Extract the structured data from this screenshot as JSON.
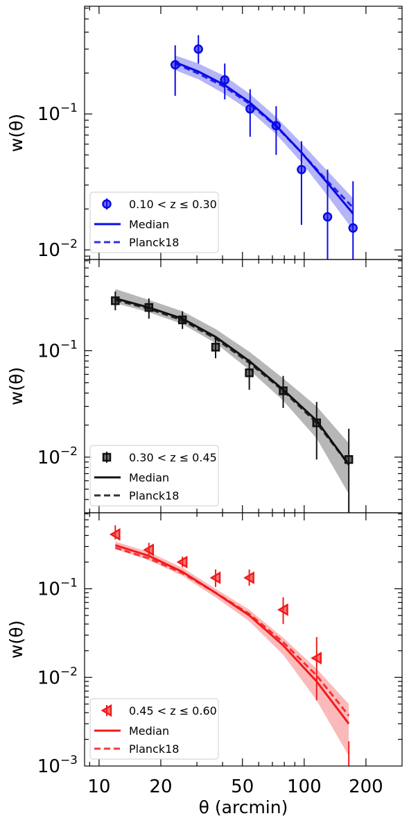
{
  "figure": {
    "xlabel": "θ  (arcmin)"
  },
  "chart_data": [
    {
      "type": "scatter",
      "panel": "top",
      "color": "#0a0ae6",
      "marker": "circle",
      "ylabel": "w(θ)",
      "x_scale": "log",
      "y_scale": "log",
      "xlim": [
        8.5,
        300
      ],
      "ylim": [
        0.0085,
        0.62
      ],
      "x_ticks": [
        10,
        20,
        50,
        100,
        200
      ],
      "x_tick_labels": [
        "10",
        "20",
        "50",
        "100",
        "200"
      ],
      "y_ticks": [
        0.01,
        0.1
      ],
      "y_tick_labels": [
        {
          "base": "10",
          "exp": "−2"
        },
        {
          "base": "10",
          "exp": "−1"
        }
      ],
      "legend": {
        "position": "lower-left",
        "data_label": "0.10 < z ≤ 0.30",
        "median_label": "Median",
        "planck_label": "Planck18"
      },
      "data": {
        "x": [
          23.5,
          30.5,
          41,
          54.5,
          73,
          97,
          130,
          173
        ],
        "y": [
          0.23,
          0.3,
          0.178,
          0.109,
          0.082,
          0.039,
          0.0175,
          0.0145
        ],
        "yerr_low": [
          0.136,
          0.235,
          0.128,
          0.068,
          0.05,
          0.0153,
          0.0075,
          0.0073
        ],
        "yerr_high": [
          0.32,
          0.38,
          0.235,
          0.152,
          0.114,
          0.063,
          0.039,
          0.032
        ]
      },
      "median": {
        "x": [
          23.5,
          30.5,
          41,
          54.5,
          73,
          97,
          130,
          173
        ],
        "y": [
          0.24,
          0.205,
          0.163,
          0.121,
          0.082,
          0.052,
          0.031,
          0.0185
        ]
      },
      "band": {
        "low": [
          0.21,
          0.18,
          0.14,
          0.105,
          0.071,
          0.044,
          0.025,
          0.014
        ],
        "high": [
          0.27,
          0.235,
          0.19,
          0.14,
          0.095,
          0.061,
          0.038,
          0.024
        ]
      },
      "planck": {
        "x": [
          23.5,
          30.5,
          41,
          54.5,
          73,
          97,
          130,
          173
        ],
        "y": [
          0.235,
          0.198,
          0.158,
          0.118,
          0.081,
          0.052,
          0.032,
          0.0205
        ]
      }
    },
    {
      "type": "scatter",
      "panel": "middle",
      "color": "#111111",
      "marker": "square",
      "ylabel": "w(θ)",
      "x_scale": "log",
      "y_scale": "log",
      "xlim": [
        8.5,
        300
      ],
      "ylim": [
        0.003,
        0.72
      ],
      "x_ticks": [
        10,
        20,
        50,
        100,
        200
      ],
      "x_tick_labels": [
        "10",
        "20",
        "50",
        "100",
        "200"
      ],
      "y_ticks": [
        0.01,
        0.1
      ],
      "y_tick_labels": [
        {
          "base": "10",
          "exp": "−2"
        },
        {
          "base": "10",
          "exp": "−1"
        }
      ],
      "legend": {
        "position": "lower-left",
        "data_label": "0.30 < z ≤ 0.45",
        "median_label": "Median",
        "planck_label": "Planck18"
      },
      "data": {
        "x": [
          12,
          17.5,
          25.5,
          37,
          54,
          79,
          115,
          165
        ],
        "y": [
          0.295,
          0.255,
          0.195,
          0.108,
          0.062,
          0.042,
          0.021,
          0.0095
        ],
        "yerr_low": [
          0.24,
          0.2,
          0.16,
          0.085,
          0.043,
          0.029,
          0.0095,
          0.0018
        ],
        "yerr_high": [
          0.36,
          0.31,
          0.235,
          0.135,
          0.083,
          0.058,
          0.033,
          0.0185
        ]
      },
      "median": {
        "x": [
          12,
          17.5,
          25.5,
          37,
          54,
          79,
          115,
          165
        ],
        "y": [
          0.31,
          0.255,
          0.2,
          0.135,
          0.08,
          0.043,
          0.022,
          0.0085
        ]
      },
      "band": {
        "low": [
          0.28,
          0.23,
          0.178,
          0.118,
          0.066,
          0.034,
          0.015,
          0.0045
        ],
        "high": [
          0.38,
          0.3,
          0.235,
          0.16,
          0.098,
          0.055,
          0.03,
          0.0135
        ]
      },
      "planck": {
        "x": [
          12,
          17.5,
          25.5,
          37,
          54,
          79,
          115,
          165
        ],
        "y": [
          0.3,
          0.248,
          0.193,
          0.13,
          0.077,
          0.042,
          0.021,
          0.0085
        ]
      }
    },
    {
      "type": "scatter",
      "panel": "bottom",
      "color": "#f21a1a",
      "marker": "triangle-left",
      "ylabel": "w(θ)",
      "x_scale": "log",
      "y_scale": "log",
      "xlim": [
        8.5,
        300
      ],
      "ylim": [
        0.001,
        0.72
      ],
      "x_ticks": [
        10,
        20,
        50,
        100,
        200
      ],
      "x_tick_labels": [
        "10",
        "20",
        "50",
        "100",
        "200"
      ],
      "y_ticks": [
        0.001,
        0.01,
        0.1
      ],
      "y_tick_labels": [
        {
          "base": "10",
          "exp": "−3"
        },
        {
          "base": "10",
          "exp": "−2"
        },
        {
          "base": "10",
          "exp": "−1"
        }
      ],
      "legend": {
        "position": "lower-left",
        "data_label": "0.45 < z ≤ 0.60",
        "median_label": "Median",
        "planck_label": "Planck18"
      },
      "data": {
        "x": [
          12,
          17.5,
          25.5,
          37,
          54,
          79,
          115,
          165
        ],
        "y": [
          0.41,
          0.275,
          0.2,
          0.133,
          0.133,
          0.058,
          0.0165,
          0.0009
        ],
        "yerr_low": [
          0.36,
          0.235,
          0.175,
          0.105,
          0.108,
          0.04,
          0.0055,
          0.0004
        ],
        "yerr_high": [
          0.52,
          0.33,
          0.23,
          0.165,
          0.165,
          0.08,
          0.0285,
          0.0019
        ]
      },
      "median": {
        "x": [
          12,
          17.5,
          25.5,
          37,
          54,
          79,
          115,
          165
        ],
        "y": [
          0.31,
          0.235,
          0.155,
          0.09,
          0.05,
          0.023,
          0.009,
          0.003
        ]
      },
      "band": {
        "low": [
          0.28,
          0.21,
          0.14,
          0.08,
          0.043,
          0.018,
          0.0055,
          0.0013
        ],
        "high": [
          0.34,
          0.26,
          0.172,
          0.1,
          0.058,
          0.028,
          0.0125,
          0.005
        ]
      },
      "planck": {
        "x": [
          12,
          17.5,
          25.5,
          37,
          54,
          79,
          115,
          165
        ],
        "y": [
          0.29,
          0.22,
          0.15,
          0.09,
          0.052,
          0.025,
          0.0105,
          0.0037
        ]
      }
    }
  ]
}
